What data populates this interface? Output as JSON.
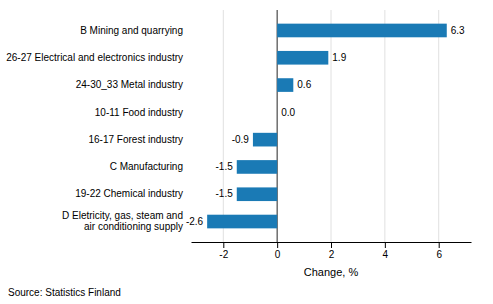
{
  "chart_data": {
    "type": "bar",
    "orientation": "horizontal",
    "categories": [
      "D Eletricity, gas, steam and\nair conditioning supply",
      "19-22 Chemical industry",
      "C Manufacturing",
      "16-17 Forest industry",
      "10-11 Food industry",
      "24-30_33 Metal industry",
      "26-27 Electrical and electronics industry",
      "B Mining and quarrying"
    ],
    "values": [
      -2.6,
      -1.5,
      -1.5,
      -0.9,
      0.0,
      0.6,
      1.9,
      6.3
    ],
    "value_labels": [
      "-2.6",
      "-1.5",
      "-1.5",
      "-0.9",
      "0.0",
      "0.6",
      "1.9",
      "6.3"
    ],
    "data_labels": true,
    "color": "#1a7ab5",
    "xlabel": "Change, %",
    "xlim": [
      -3.2,
      7.2
    ],
    "xticks": [
      -2,
      0,
      2,
      4,
      6
    ],
    "grid": true,
    "annotations": [
      "Source: Statistics Finland"
    ]
  }
}
